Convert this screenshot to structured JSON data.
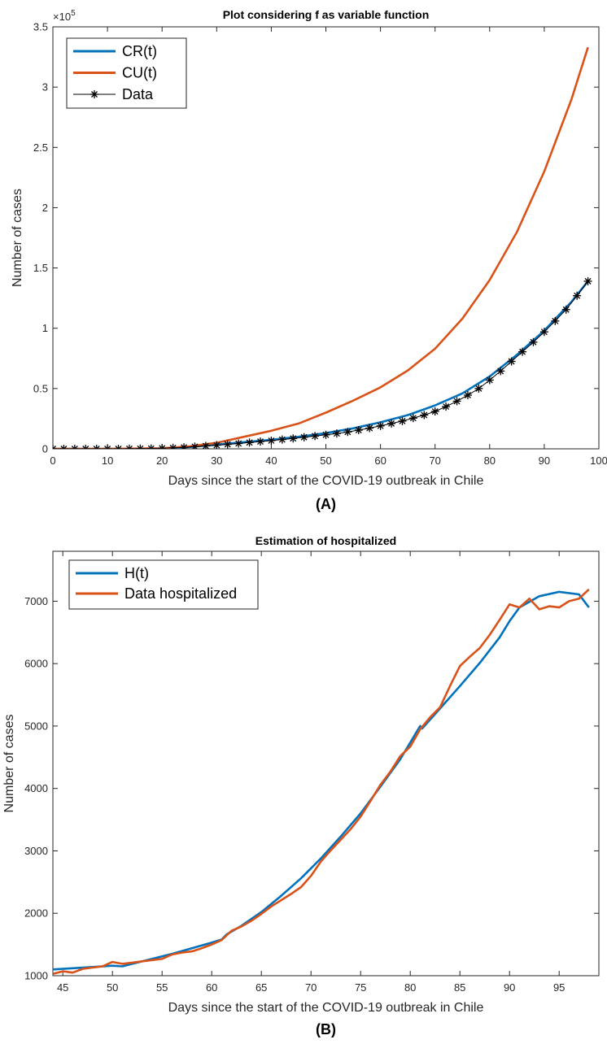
{
  "chart_data": [
    {
      "type": "line",
      "title": "Plot considering f as variable function",
      "xlabel": "Days since the start of the COVID-19 outbreak in Chile",
      "ylabel": "Number of cases",
      "panel_label": "(A)",
      "exponent_label": "×10",
      "exponent_power": "5",
      "xlim": [
        0,
        100
      ],
      "ylim": [
        0,
        350000
      ],
      "x_ticks": [
        0,
        10,
        20,
        30,
        40,
        50,
        60,
        70,
        80,
        90,
        100
      ],
      "y_ticks": [
        0,
        50000,
        100000,
        150000,
        200000,
        250000,
        300000,
        350000
      ],
      "y_tick_labels": [
        "0",
        "0.5",
        "1",
        "1.5",
        "2",
        "2.5",
        "3",
        "3.5"
      ],
      "legend_position": "top-left",
      "series": [
        {
          "name": "CR(t)",
          "color": "#0072BD",
          "marker": "none",
          "x": [
            0,
            10,
            20,
            25,
            30,
            35,
            40,
            45,
            50,
            55,
            60,
            65,
            70,
            75,
            80,
            85,
            90,
            95,
            98
          ],
          "y": [
            0,
            0,
            200,
            1500,
            3500,
            5500,
            7500,
            10000,
            13000,
            17000,
            22000,
            28000,
            36000,
            46000,
            60000,
            78000,
            98000,
            122000,
            139000
          ]
        },
        {
          "name": "CU(t)",
          "color": "#D95319",
          "marker": "none",
          "x": [
            0,
            10,
            20,
            25,
            30,
            35,
            40,
            45,
            50,
            55,
            60,
            65,
            70,
            75,
            80,
            85,
            90,
            95,
            98
          ],
          "y": [
            0,
            0,
            500,
            2000,
            5000,
            10000,
            15000,
            21000,
            30000,
            40000,
            51000,
            65000,
            83000,
            108000,
            140000,
            180000,
            230000,
            290000,
            333000
          ]
        },
        {
          "name": "Data",
          "color": "#000000",
          "marker": "*",
          "x": [
            0,
            2,
            4,
            6,
            8,
            10,
            12,
            14,
            16,
            18,
            20,
            22,
            24,
            26,
            28,
            30,
            32,
            34,
            36,
            38,
            40,
            42,
            44,
            46,
            48,
            50,
            52,
            54,
            56,
            58,
            60,
            62,
            64,
            66,
            68,
            70,
            72,
            74,
            76,
            78,
            80,
            82,
            84,
            86,
            88,
            90,
            92,
            94,
            96,
            98
          ],
          "y": [
            0,
            0,
            0,
            0,
            0,
            0,
            0,
            100,
            200,
            300,
            500,
            800,
            1200,
            1800,
            2400,
            3000,
            3700,
            4400,
            5200,
            6000,
            6800,
            7700,
            8600,
            9600,
            10600,
            11600,
            12700,
            14000,
            15500,
            17200,
            19000,
            21000,
            23000,
            25500,
            28000,
            31000,
            35000,
            39500,
            44500,
            50000,
            57000,
            64500,
            72500,
            80500,
            88500,
            97000,
            106000,
            115500,
            127000,
            139000
          ]
        }
      ]
    },
    {
      "type": "line",
      "title": "Estimation of hospitalized",
      "xlabel": "Days since the start of the COVID-19 outbreak in Chile",
      "ylabel": "Number of cases",
      "panel_label": "(B)",
      "xlim": [
        44,
        99
      ],
      "ylim": [
        1000,
        7800
      ],
      "x_ticks": [
        45,
        50,
        55,
        60,
        65,
        70,
        75,
        80,
        85,
        90,
        95
      ],
      "y_ticks": [
        1000,
        2000,
        3000,
        4000,
        5000,
        6000,
        7000
      ],
      "y_tick_labels": [
        "1000",
        "2000",
        "3000",
        "4000",
        "5000",
        "6000",
        "7000"
      ],
      "legend_position": "top-left",
      "series": [
        {
          "name": "H(t)",
          "color": "#0072BD",
          "marker": "none",
          "x": [
            44,
            46,
            48,
            50,
            51,
            52,
            54,
            56,
            58,
            60,
            61,
            61.5,
            63,
            65,
            67,
            69,
            71,
            73,
            75,
            77,
            79,
            81,
            81.2,
            83,
            85,
            87,
            89,
            90,
            91,
            93,
            95,
            97,
            98
          ],
          "y": [
            1100,
            1120,
            1140,
            1160,
            1150,
            1190,
            1270,
            1350,
            1440,
            1530,
            1580,
            1660,
            1800,
            2020,
            2280,
            2560,
            2880,
            3230,
            3600,
            4030,
            4470,
            5000,
            4960,
            5280,
            5640,
            6010,
            6420,
            6680,
            6900,
            7080,
            7150,
            7110,
            6900
          ]
        },
        {
          "name": "Data hospitalized",
          "color": "#D95319",
          "marker": "none",
          "x": [
            44,
            45,
            46,
            47,
            48,
            49,
            50,
            51,
            52,
            53,
            54,
            55,
            56,
            57,
            58,
            59,
            60,
            61,
            62,
            63,
            64,
            65,
            66,
            67,
            68,
            69,
            70,
            71,
            72,
            73,
            74,
            75,
            76,
            77,
            78,
            79,
            80,
            81,
            82,
            83,
            84,
            85,
            86,
            87,
            88,
            89,
            90,
            91,
            92,
            93,
            94,
            95,
            96,
            97,
            98
          ],
          "y": [
            1030,
            1070,
            1050,
            1110,
            1130,
            1150,
            1220,
            1190,
            1210,
            1230,
            1250,
            1270,
            1340,
            1370,
            1390,
            1440,
            1500,
            1570,
            1720,
            1790,
            1880,
            1990,
            2110,
            2210,
            2310,
            2420,
            2600,
            2830,
            3010,
            3180,
            3350,
            3550,
            3800,
            4060,
            4270,
            4520,
            4670,
            4950,
            5140,
            5300,
            5640,
            5960,
            6110,
            6250,
            6460,
            6700,
            6950,
            6900,
            7040,
            6870,
            6920,
            6900,
            7000,
            7040,
            7190
          ]
        }
      ]
    }
  ]
}
